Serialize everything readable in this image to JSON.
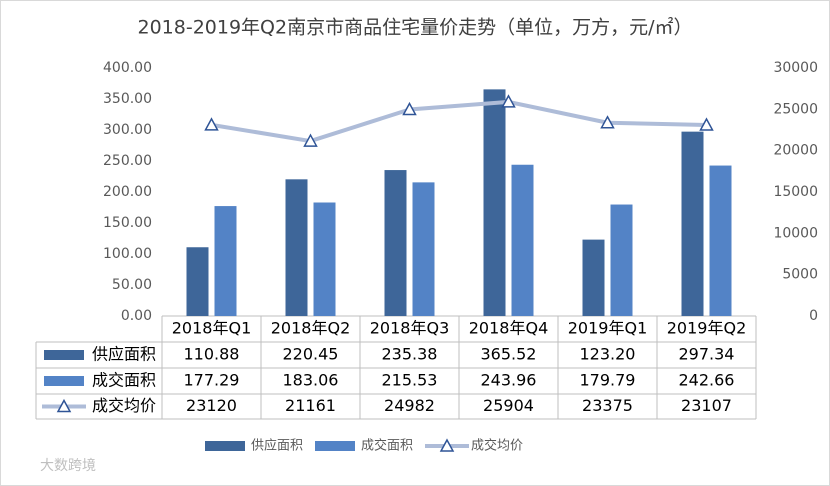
{
  "chart_data": {
    "type": "bar-line-table",
    "title": "2018-2019年Q2南京市商品住宅量价走势（单位，万方，元/㎡）",
    "categories": [
      "2018年Q1",
      "2018年Q2",
      "2018年Q3",
      "2018年Q4",
      "2019年Q1",
      "2019年Q2"
    ],
    "series": [
      {
        "name": "供应面积",
        "type": "bar",
        "color": "#3e6699",
        "values": [
          110.88,
          220.45,
          235.38,
          365.52,
          123.2,
          297.34
        ],
        "value_labels": [
          "110.88",
          "220.45",
          "235.38",
          "365.52",
          "123.20",
          "297.34"
        ]
      },
      {
        "name": "成交面积",
        "type": "bar",
        "color": "#5383c6",
        "values": [
          177.29,
          183.06,
          215.53,
          243.96,
          179.79,
          242.66
        ]
      },
      {
        "name": "成交均价",
        "type": "line",
        "axis": "y2",
        "color": "#aebcd8",
        "marker_color": "#2f5496",
        "values": [
          23120,
          21161,
          24982,
          25904,
          23375,
          23107
        ]
      }
    ],
    "ylim": [
      0,
      400
    ],
    "yticks": [
      {
        "value": 0,
        "label": "0.00"
      },
      {
        "value": 50,
        "label": "50.00"
      },
      {
        "value": 100,
        "label": "100.00"
      },
      {
        "value": 150,
        "label": "150.00"
      },
      {
        "value": 200,
        "label": "200.00"
      },
      {
        "value": 250,
        "label": "250.00"
      },
      {
        "value": 300,
        "label": "300.00"
      },
      {
        "value": 350,
        "label": "350.00"
      },
      {
        "value": 400,
        "label": "400.00"
      }
    ],
    "y2lim": [
      0,
      30000
    ],
    "y2ticks": [
      0,
      5000,
      10000,
      15000,
      20000,
      25000,
      30000
    ],
    "grid": false,
    "legend": "bottom",
    "watermark": "大数跨境"
  }
}
